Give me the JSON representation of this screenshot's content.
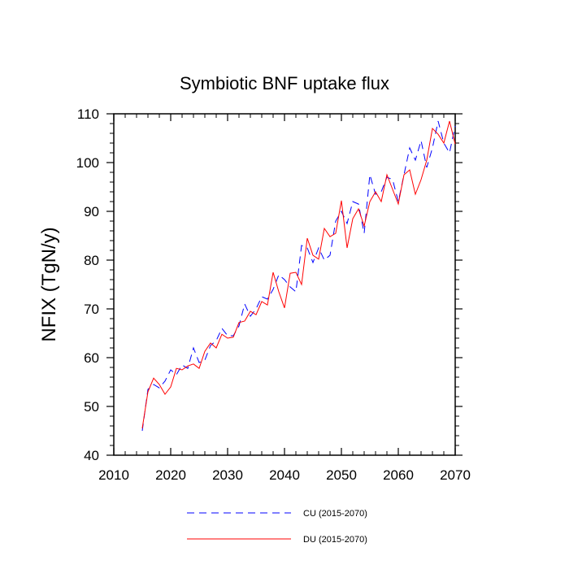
{
  "chart_data": {
    "type": "line",
    "title": "Symbiotic BNF uptake flux",
    "xlabel": "",
    "ylabel": "NFIX  (TgN/y)",
    "xlim": [
      2010,
      2070
    ],
    "ylim": [
      40,
      110
    ],
    "xticks": [
      2010,
      2020,
      2030,
      2040,
      2050,
      2060,
      2070
    ],
    "yticks": [
      40,
      50,
      60,
      70,
      80,
      90,
      100,
      110
    ],
    "grid": false,
    "legend_position": "bottom",
    "x": [
      2015,
      2016,
      2017,
      2018,
      2019,
      2020,
      2021,
      2022,
      2023,
      2024,
      2025,
      2026,
      2027,
      2028,
      2029,
      2030,
      2031,
      2032,
      2033,
      2034,
      2035,
      2036,
      2037,
      2038,
      2039,
      2040,
      2041,
      2042,
      2043,
      2044,
      2045,
      2046,
      2047,
      2048,
      2049,
      2050,
      2051,
      2052,
      2053,
      2054,
      2055,
      2056,
      2057,
      2058,
      2059,
      2060,
      2061,
      2062,
      2063,
      2064,
      2065,
      2066,
      2067,
      2068,
      2069,
      2070
    ],
    "series": [
      {
        "name": "CU (2015-2070)",
        "color": "#0000ff",
        "dash": "dashed",
        "values": [
          45.0,
          53.5,
          54.5,
          53.8,
          55.2,
          57.5,
          56.5,
          58.5,
          57.8,
          62.0,
          59.0,
          59.5,
          62.5,
          63.5,
          66.0,
          64.5,
          64.5,
          66.5,
          71.0,
          68.5,
          70.0,
          72.5,
          72.0,
          74.0,
          77.0,
          76.0,
          74.5,
          73.5,
          83.0,
          82.5,
          79.5,
          82.5,
          80.0,
          81.0,
          88.0,
          90.0,
          87.5,
          92.0,
          91.5,
          85.5,
          97.5,
          93.5,
          94.0,
          97.0,
          96.5,
          92.0,
          97.5,
          103.0,
          100.5,
          104.5,
          99.0,
          103.0,
          108.5,
          104.0,
          102.0,
          107.5
        ]
      },
      {
        "name": "DU (2015-2070)",
        "color": "#ff0000",
        "dash": "solid",
        "values": [
          45.5,
          53.0,
          55.8,
          54.5,
          52.5,
          54.0,
          57.8,
          57.5,
          58.3,
          58.7,
          57.8,
          61.3,
          63.0,
          62.0,
          64.8,
          64.0,
          64.2,
          67.2,
          67.5,
          69.5,
          68.8,
          71.5,
          70.8,
          77.5,
          73.5,
          70.2,
          77.3,
          77.5,
          75.0,
          84.5,
          81.0,
          80.2,
          86.5,
          84.8,
          85.5,
          92.2,
          82.5,
          88.5,
          90.5,
          87.0,
          92.0,
          94.0,
          92.0,
          97.5,
          94.5,
          91.5,
          97.5,
          98.5,
          93.5,
          96.5,
          100.5,
          107.0,
          105.8,
          104.0,
          108.5,
          103.8
        ]
      }
    ]
  }
}
